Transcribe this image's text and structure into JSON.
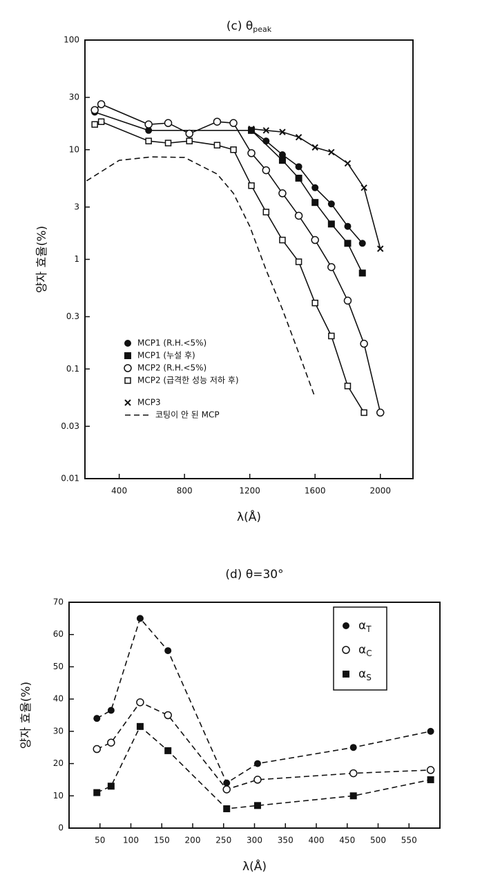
{
  "chart_data": [
    {
      "type": "line",
      "title": "(c) θ",
      "title_subscript": "peak",
      "xlabel": "λ(Å)",
      "ylabel": "양자 효율(%)",
      "log_y": true,
      "xlim": [
        190,
        2200
      ],
      "ylim": [
        0.01,
        100
      ],
      "xticks": [
        400,
        800,
        1200,
        1600,
        2000
      ],
      "yticks": [
        100,
        30,
        10,
        3,
        1,
        0.3,
        0.1,
        0.03,
        0.01
      ],
      "legend": "lower-left",
      "series": [
        {
          "name": "MCP1 (R.H.<5%)",
          "marker": "filled-circle",
          "line_style": "solid",
          "color": "#111",
          "x": [
            250,
            580,
            1210,
            1300,
            1400,
            1500,
            1600,
            1700,
            1800,
            1890
          ],
          "values": [
            22,
            15,
            15,
            12,
            9,
            7,
            4.5,
            3.2,
            2,
            1.4
          ]
        },
        {
          "name": "MCP1 (누설 후)",
          "marker": "filled-square",
          "line_style": "solid",
          "color": "#111",
          "x": [
            1210,
            1400,
            1500,
            1600,
            1700,
            1800,
            1890
          ],
          "values": [
            15,
            8,
            5.5,
            3.3,
            2.1,
            1.4,
            0.75
          ]
        },
        {
          "name": "MCP2 (R.H.<5%)",
          "marker": "open-circle",
          "line_style": "solid",
          "color": "#111",
          "x": [
            250,
            290,
            580,
            700,
            830,
            1000,
            1100,
            1210,
            1300,
            1400,
            1500,
            1600,
            1700,
            1800,
            1900,
            2000
          ],
          "values": [
            23,
            26,
            17,
            17.5,
            14,
            18,
            17.5,
            9.3,
            6.5,
            4,
            2.5,
            1.5,
            0.85,
            0.42,
            0.17,
            0.04
          ]
        },
        {
          "name": "MCP2 (급격한 성능 저하 후)",
          "marker": "open-square",
          "line_style": "solid",
          "color": "#111",
          "x": [
            250,
            290,
            580,
            700,
            830,
            1000,
            1100,
            1210,
            1300,
            1400,
            1500,
            1600,
            1700,
            1800,
            1900
          ],
          "values": [
            17,
            18,
            12,
            11.5,
            12,
            11,
            10,
            4.7,
            2.7,
            1.5,
            0.95,
            0.4,
            0.2,
            0.07,
            0.04
          ]
        },
        {
          "name": "MCP3",
          "marker": "cross",
          "line_style": "solid",
          "color": "#111",
          "x": [
            1210,
            1300,
            1400,
            1500,
            1600,
            1700,
            1800,
            1900,
            2000
          ],
          "values": [
            15.5,
            15,
            14.5,
            13,
            10.5,
            9.5,
            7.5,
            4.5,
            1.25
          ]
        },
        {
          "name": "코팅이 안 된 MCP",
          "marker": "none",
          "line_style": "dashed",
          "color": "#111",
          "x": [
            200,
            400,
            600,
            800,
            1000,
            1100,
            1200,
            1300,
            1400,
            1500,
            1600
          ],
          "values": [
            5.2,
            8,
            8.6,
            8.5,
            6,
            4,
            2,
            0.8,
            0.35,
            0.14,
            0.055
          ]
        }
      ]
    },
    {
      "type": "line",
      "title": "(d) θ=30°",
      "xlabel": "λ(Å)",
      "ylabel": "양자 효율(%)",
      "log_y": false,
      "xlim": [
        0,
        600
      ],
      "ylim": [
        0,
        70
      ],
      "xticks": [
        50,
        100,
        150,
        200,
        250,
        300,
        350,
        400,
        450,
        500,
        550
      ],
      "yticks": [
        0,
        10,
        20,
        30,
        40,
        50,
        60,
        70
      ],
      "legend": "upper-right",
      "series": [
        {
          "name": "α",
          "subscript": "T",
          "marker": "filled-circle",
          "line_style": "dashed",
          "color": "#111",
          "x": [
            45,
            68,
            115,
            160,
            255,
            305,
            460,
            585
          ],
          "values": [
            34,
            36.5,
            65,
            55,
            14,
            20,
            25,
            30
          ]
        },
        {
          "name": "α",
          "subscript": "C",
          "marker": "open-circle",
          "line_style": "dashed",
          "color": "#111",
          "x": [
            45,
            68,
            115,
            160,
            255,
            305,
            460,
            585
          ],
          "values": [
            24.5,
            26.5,
            39,
            35,
            12,
            15,
            17,
            18
          ]
        },
        {
          "name": "α",
          "subscript": "S",
          "marker": "filled-square",
          "line_style": "dashed",
          "color": "#111",
          "x": [
            45,
            68,
            115,
            160,
            255,
            305,
            460,
            585
          ],
          "values": [
            11,
            13,
            31.5,
            24,
            6,
            7,
            10,
            15
          ]
        }
      ]
    }
  ]
}
